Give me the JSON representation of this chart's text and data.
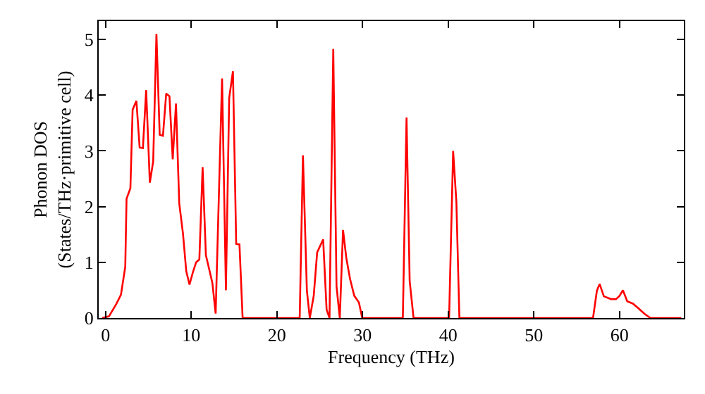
{
  "chart_data": {
    "type": "line",
    "xlabel": "Frequency (THz)",
    "ylabel": "Phonon DOS\n(States/THz·primitive cell)",
    "x": [
      -0.4,
      0.4,
      1.25,
      1.8,
      2.3,
      2.45,
      2.9,
      3.16,
      3.6,
      3.98,
      4.36,
      4.74,
      5.17,
      5.56,
      5.94,
      6.32,
      6.7,
      7.08,
      7.46,
      7.84,
      8.22,
      8.6,
      9.04,
      9.42,
      9.8,
      10.19,
      10.57,
      10.95,
      11.33,
      11.71,
      12.09,
      12.47,
      12.85,
      13.6,
      14.05,
      14.43,
      14.87,
      15.25,
      15.63,
      16.0,
      22.66,
      23.04,
      23.5,
      23.84,
      24.3,
      24.7,
      25.4,
      25.8,
      26.14,
      26.58,
      26.96,
      27.34,
      27.72,
      28.1,
      28.54,
      29.03,
      29.57,
      29.96,
      34.7,
      35.13,
      35.5,
      35.95,
      40.1,
      40.57,
      40.95,
      41.3,
      56.9,
      57.35,
      57.67,
      58.16,
      58.98,
      59.58,
      60.0,
      60.39,
      60.89,
      61.54,
      62.09,
      62.52,
      62.96,
      63.6,
      67.2
    ],
    "series": [
      {
        "color": "#ff0000",
        "values": [
          0,
          0.03,
          0.25,
          0.42,
          0.92,
          2.14,
          2.33,
          3.74,
          3.9,
          3.06,
          3.05,
          4.09,
          2.43,
          2.81,
          5.1,
          3.29,
          3.27,
          4.03,
          3.98,
          2.85,
          3.85,
          2.06,
          1.51,
          0.84,
          0.6,
          0.82,
          1.0,
          1.05,
          2.71,
          1.13,
          0.88,
          0.63,
          0.08,
          4.3,
          0.5,
          3.95,
          4.43,
          1.33,
          1.32,
          0,
          0,
          2.92,
          0.49,
          0,
          0.4,
          1.18,
          1.41,
          0.15,
          0,
          4.83,
          0.57,
          0,
          1.58,
          1.08,
          0.7,
          0.4,
          0.28,
          0,
          0,
          3.6,
          0.66,
          0,
          0,
          3.0,
          2.08,
          0,
          0,
          0.49,
          0.61,
          0.39,
          0.34,
          0.34,
          0.4,
          0.5,
          0.3,
          0.26,
          0.19,
          0.13,
          0.07,
          0,
          0
        ]
      }
    ],
    "xlim": [
      -0.8,
      67.5
    ],
    "xticks": [
      0,
      10,
      20,
      30,
      40,
      50,
      60
    ],
    "ylim": [
      0,
      5.33
    ],
    "yticks": [
      0,
      1,
      2,
      3,
      4,
      5
    ],
    "legend": false,
    "marker": "none",
    "line_style": "solid"
  }
}
